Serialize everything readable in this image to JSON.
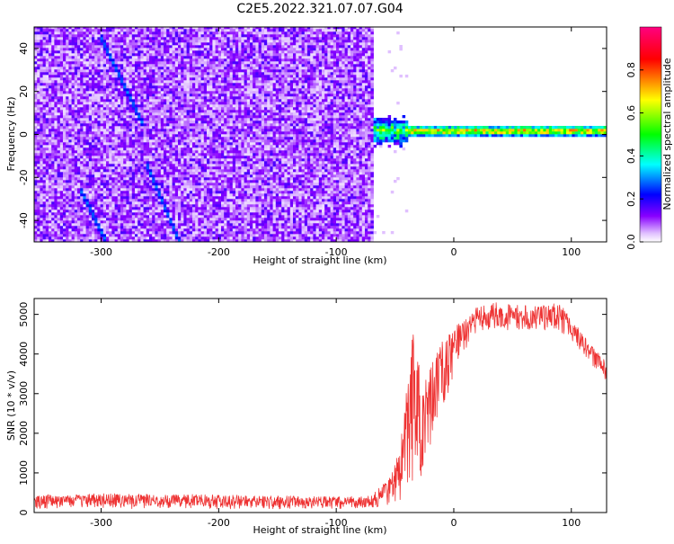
{
  "title": "C2E5.2022.321.07.07.G04",
  "chart_data": [
    {
      "type": "heatmap",
      "xlabel": "Height of straight line (km)",
      "ylabel": "Frequency (Hz)",
      "xlim": [
        -357,
        130
      ],
      "ylim": [
        -50,
        50
      ],
      "x_ticks": [
        -300,
        -200,
        -100,
        0,
        100
      ],
      "y_ticks": [
        -40,
        -20,
        0,
        20,
        40
      ],
      "colorbar": {
        "label": "Normalized spectral amplitude",
        "range": [
          0,
          1
        ],
        "ticks": [
          0.0,
          0.2,
          0.4,
          0.6,
          0.8
        ],
        "colors": [
          "#ffffff",
          "#8800ff",
          "#0000ff",
          "#00ffff",
          "#00ff00",
          "#ffff00",
          "#ff0000",
          "#ff0088"
        ]
      },
      "features": {
        "noise_region_x": [
          -357,
          -70
        ],
        "signal_region_x": [
          -70,
          130
        ],
        "signal_frequency_hz": 1,
        "streaks": [
          {
            "x": [
              -300,
              -268
            ],
            "y": [
              43,
              7
            ]
          },
          {
            "x": [
              -262,
              -235
            ],
            "y": [
              -15,
              -50
            ]
          },
          {
            "x": [
              -318,
              -300
            ],
            "y": [
              -27,
              -47
            ]
          }
        ]
      }
    },
    {
      "type": "line",
      "xlabel": "Height of straight line (km)",
      "ylabel": "SNR (10 * v/v)",
      "xlim": [
        -357,
        130
      ],
      "ylim": [
        0,
        5400
      ],
      "x_ticks": [
        -300,
        -200,
        -100,
        0,
        100
      ],
      "y_ticks": [
        0,
        1000,
        2000,
        3000,
        4000,
        5000
      ],
      "color": "#ee3333",
      "envelope": {
        "x": [
          -357,
          -300,
          -200,
          -100,
          -70,
          -55,
          -45,
          -35,
          -28,
          -20,
          -10,
          0,
          10,
          20,
          35,
          50,
          70,
          90,
          100,
          115,
          130
        ],
        "lo": [
          100,
          100,
          90,
          90,
          100,
          200,
          300,
          500,
          900,
          1500,
          2600,
          3400,
          4100,
          4500,
          4550,
          4600,
          4600,
          4550,
          4300,
          3800,
          3300
        ],
        "hi": [
          450,
          480,
          450,
          400,
          420,
          900,
          1800,
          4600,
          3500,
          3700,
          4300,
          4700,
          4900,
          5200,
          5300,
          5250,
          5200,
          5300,
          4900,
          4300,
          3800
        ]
      }
    }
  ]
}
